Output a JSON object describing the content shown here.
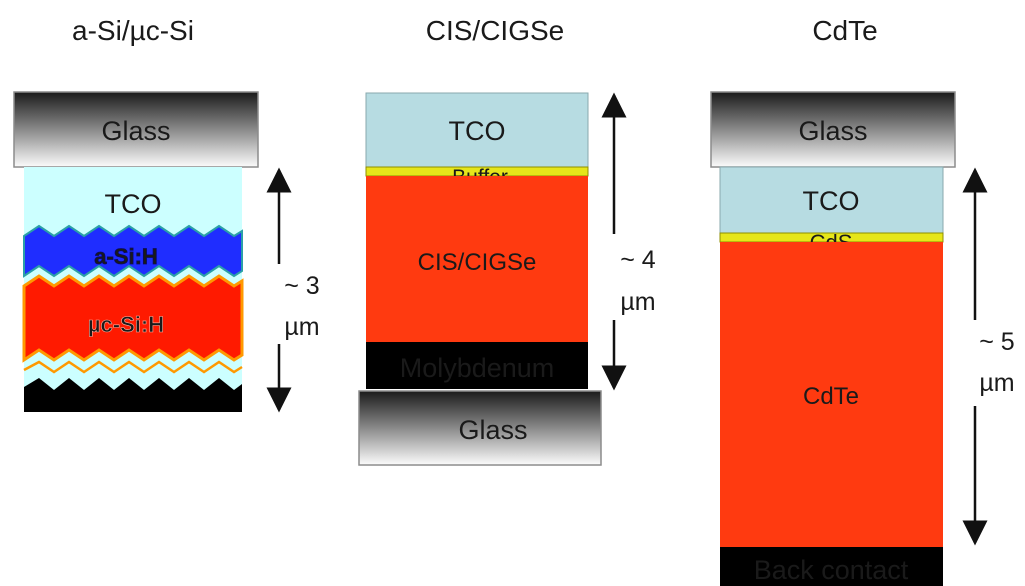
{
  "columns": [
    {
      "title": "a-Si/µc-Si",
      "layers": {
        "glass": "Glass",
        "tco": "TCO",
        "asi": "a-Si:H",
        "ucsi": "µc-Si:H"
      },
      "thickness": {
        "value": "~ 3",
        "unit": "µm"
      }
    },
    {
      "title": "CIS/CIGSe",
      "layers": {
        "tco": "TCO",
        "buffer": "Buffer",
        "absorber": "CIS/CIGSe",
        "molybdenum": "Molybdenum",
        "glass": "Glass"
      },
      "thickness": {
        "value": "~ 4",
        "unit": "µm"
      }
    },
    {
      "title": "CdTe",
      "layers": {
        "glass": "Glass",
        "tco": "TCO",
        "cds": "CdS",
        "absorber": "CdTe",
        "back_contact": "Back contact"
      },
      "thickness": {
        "value": "~ 5",
        "unit": "µm"
      }
    }
  ],
  "colors": {
    "tco_light_cyan": "#ccffff",
    "tco_blue_grey": "#b7dce2",
    "a_si": "#1f2dff",
    "uc_si": "#ff1a00",
    "absorber": "#ff3a10",
    "buffer": "#e6e61a",
    "contact_orange": "#ff9900",
    "back_contact": "#000000"
  }
}
